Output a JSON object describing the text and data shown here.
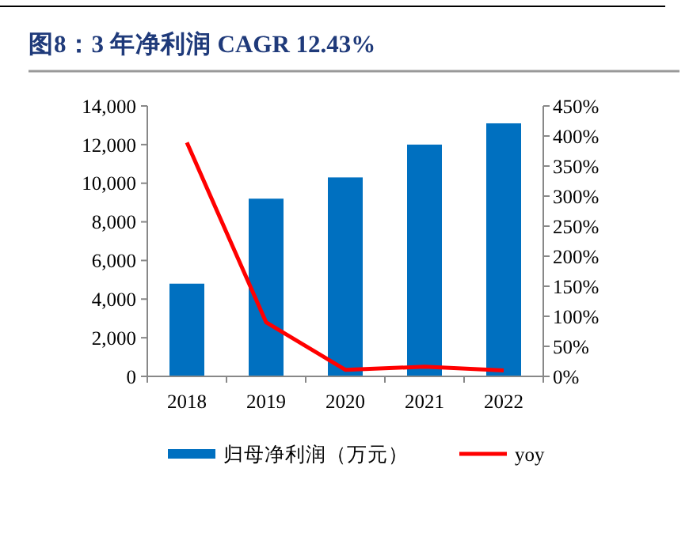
{
  "chart_data": {
    "type": "bar",
    "title": "图8：3 年净利润 CAGR 12.43%",
    "categories": [
      "2018",
      "2019",
      "2020",
      "2021",
      "2022"
    ],
    "series": [
      {
        "name": "归母净利润（万元）",
        "color": "#0070c0",
        "values": [
          4800,
          9200,
          10300,
          12000,
          13100
        ]
      },
      {
        "name": "yoy",
        "type": "line",
        "axis": "y2",
        "color": "#ff0000",
        "values": [
          389,
          90,
          11,
          16,
          10
        ]
      }
    ],
    "ylim": [
      0,
      14000
    ],
    "yticks": [
      {
        "value": 0,
        "label": "0"
      },
      {
        "value": 2000,
        "label": "2,000"
      },
      {
        "value": 4000,
        "label": "4,000"
      },
      {
        "value": 6000,
        "label": "6,000"
      },
      {
        "value": 8000,
        "label": "8,000"
      },
      {
        "value": 10000,
        "label": "10,000"
      },
      {
        "value": 12000,
        "label": "12,000"
      },
      {
        "value": 14000,
        "label": "14,000"
      }
    ],
    "y2lim": [
      0,
      450
    ],
    "y2ticks": [
      {
        "value": 0,
        "label": "0%"
      },
      {
        "value": 50,
        "label": "50%"
      },
      {
        "value": 100,
        "label": "100%"
      },
      {
        "value": 150,
        "label": "150%"
      },
      {
        "value": 200,
        "label": "200%"
      },
      {
        "value": 250,
        "label": "250%"
      },
      {
        "value": 300,
        "label": "300%"
      },
      {
        "value": 350,
        "label": "350%"
      },
      {
        "value": 400,
        "label": "400%"
      },
      {
        "value": 450,
        "label": "450%"
      }
    ],
    "grid": false,
    "legend": "bottom",
    "marker": "none",
    "line_style": "solid"
  }
}
